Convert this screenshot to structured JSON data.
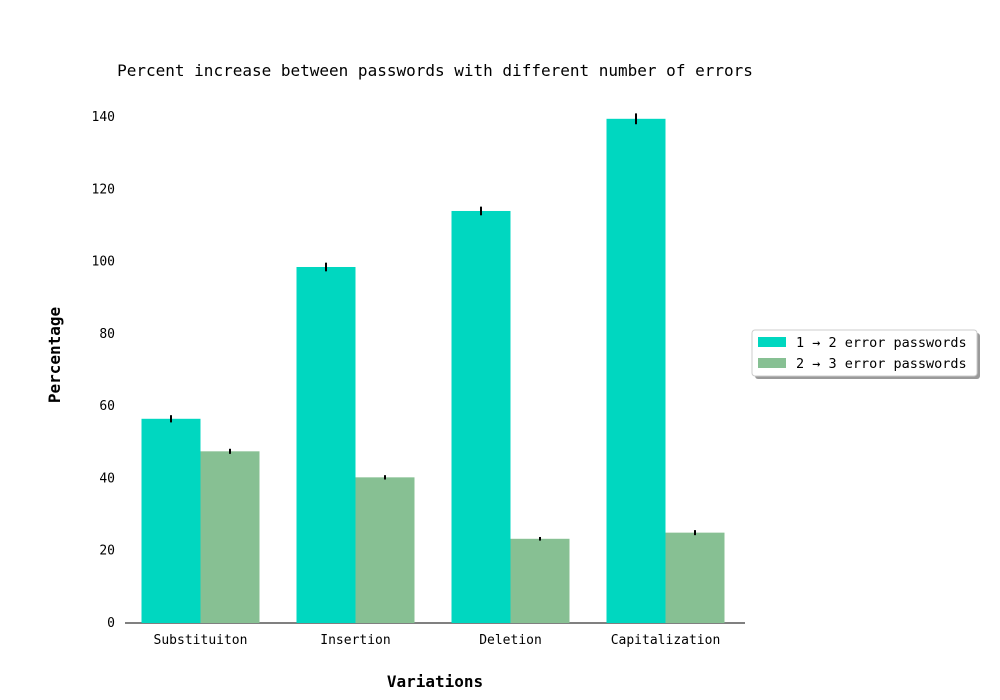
{
  "chart_data": {
    "type": "bar",
    "title": "Percent increase between passwords with different number of errors",
    "xlabel": "Variations",
    "ylabel": "Percentage",
    "categories": [
      "Substituiton",
      "Insertion",
      "Deletion",
      "Capitalization"
    ],
    "series": [
      {
        "name": "1 → 2 error passwords",
        "color": "#00d7c0",
        "values": [
          56.5,
          98.5,
          114,
          139.5
        ],
        "errors": [
          1,
          1.2,
          1.2,
          1.5
        ]
      },
      {
        "name": "2 → 3 error passwords",
        "color": "#87c093",
        "values": [
          47.5,
          40.3,
          23.3,
          25
        ],
        "errors": [
          0.7,
          0.6,
          0.5,
          0.7
        ]
      }
    ],
    "yticks": [
      0,
      20,
      40,
      60,
      80,
      100,
      120,
      140
    ],
    "ylim": [
      0,
      140
    ],
    "grid": false,
    "legend_position": "right"
  }
}
